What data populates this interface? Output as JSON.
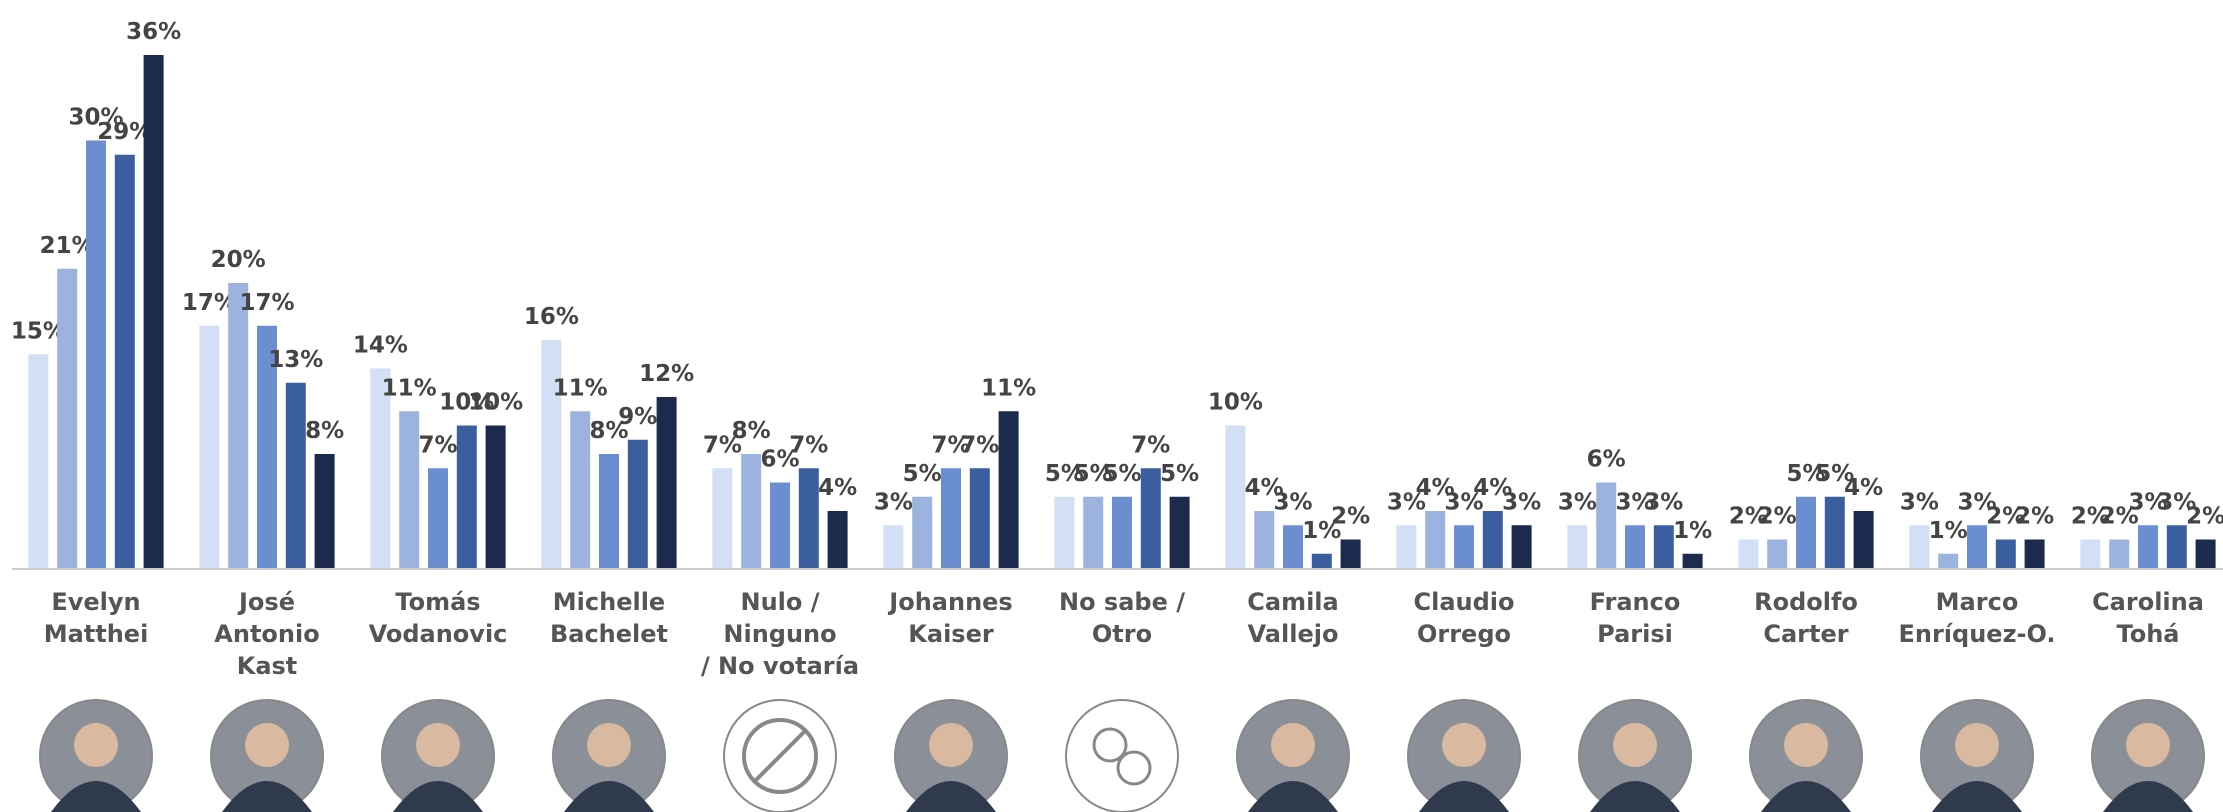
{
  "chart_data": {
    "type": "bar",
    "categories": [
      "Evelyn\nMatthei",
      "José\nAntonio\nKast",
      "Tomás\nVodanovic",
      "Michelle\nBachelet",
      "Nulo /\nNinguno\n/ No votaría",
      "Johannes\nKaiser",
      "No sabe /\nOtro",
      "Camila\nVallejo",
      "Claudio\nOrrego",
      "Franco\nParisi",
      "Rodolfo\nCarter",
      "Marco\nEnríquez-O.",
      "Carolina\nTohá"
    ],
    "series": [
      {
        "color": "#d3dff4",
        "values": [
          15,
          17,
          14,
          16,
          7,
          3,
          5,
          10,
          3,
          3,
          2,
          3,
          2
        ],
        "value_labels": [
          "15%",
          "17%",
          "14%",
          "16%",
          "7%",
          "3%",
          "5%",
          "10%",
          "3%",
          "3%",
          "2%",
          "3%",
          "2%"
        ]
      },
      {
        "color": "#9cb3e0",
        "values": [
          21,
          20,
          11,
          11,
          8,
          5,
          5,
          4,
          4,
          6,
          2,
          1,
          2
        ],
        "value_labels": [
          "21%",
          "20%",
          "11%",
          "11%",
          "8%",
          "5%",
          "5%",
          "4%",
          "4%",
          "6%",
          "2%",
          "1%",
          "2%"
        ]
      },
      {
        "color": "#6a8ed0",
        "values": [
          30,
          17,
          7,
          8,
          6,
          7,
          5,
          3,
          3,
          3,
          5,
          3,
          3
        ],
        "value_labels": [
          "30%",
          "17%",
          "7%",
          "8%",
          "6%",
          "7%",
          "5%",
          "3%",
          "3%",
          "3%",
          "5%",
          "3%",
          "3%"
        ]
      },
      {
        "color": "#3b5e9f",
        "values": [
          29,
          13,
          10,
          9,
          7,
          7,
          7,
          1,
          4,
          3,
          5,
          2,
          3
        ],
        "value_labels": [
          "29%",
          "13%",
          "10%",
          "9%",
          "7%",
          "7%",
          "7%",
          "1%",
          "4%",
          "3%",
          "5%",
          "2%",
          "3%"
        ]
      },
      {
        "color": "#1c2a4e",
        "values": [
          36,
          8,
          10,
          12,
          4,
          11,
          5,
          2,
          3,
          1,
          4,
          2,
          2
        ],
        "value_labels": [
          "36%",
          "8%",
          "10%",
          "12%",
          "4%",
          "11%",
          "5%",
          "2%",
          "3%",
          "1%",
          "4%",
          "2%",
          "2%"
        ]
      }
    ]
  }
}
